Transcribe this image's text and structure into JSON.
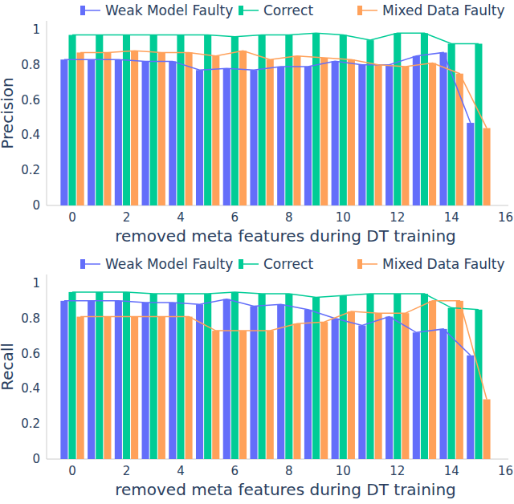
{
  "chart_data": [
    {
      "type": "bar",
      "x_label": "removed meta features during DT training",
      "y_label": "Precision",
      "x": [
        0,
        1,
        2,
        3,
        4,
        5,
        6,
        7,
        8,
        9,
        10,
        11,
        12,
        13,
        14,
        15
      ],
      "xlim": [
        -0.95,
        16.1
      ],
      "xticks": [
        0,
        2,
        4,
        6,
        8,
        10,
        12,
        14,
        16
      ],
      "ylim": [
        0,
        1.05
      ],
      "yticks": [
        0,
        0.2,
        0.4,
        0.6,
        0.8,
        1
      ],
      "grid": false,
      "legend": "top",
      "series": [
        {
          "name": "Weak Model Faulty",
          "color": "#636efa",
          "values": [
            0.83,
            0.83,
            0.83,
            0.82,
            0.82,
            0.77,
            0.78,
            0.77,
            0.79,
            0.79,
            0.82,
            0.8,
            0.8,
            0.85,
            0.87,
            0.47
          ]
        },
        {
          "name": "Correct",
          "color": "#00cc96",
          "values": [
            0.97,
            0.97,
            0.97,
            0.97,
            0.97,
            0.97,
            0.96,
            0.97,
            0.97,
            0.98,
            0.97,
            0.94,
            0.98,
            0.98,
            0.92,
            0.92
          ]
        },
        {
          "name": "Mixed Data Faulty",
          "color": "#ffa15a",
          "values": [
            0.87,
            0.87,
            0.88,
            0.87,
            0.87,
            0.85,
            0.88,
            0.83,
            0.85,
            0.84,
            0.83,
            0.8,
            0.79,
            0.81,
            0.75,
            0.44
          ]
        }
      ]
    },
    {
      "type": "bar",
      "x_label": "removed meta features during DT training",
      "y_label": "Recall",
      "x": [
        0,
        1,
        2,
        3,
        4,
        5,
        6,
        7,
        8,
        9,
        10,
        11,
        12,
        13,
        14,
        15
      ],
      "xlim": [
        -0.95,
        16.1
      ],
      "xticks": [
        0,
        2,
        4,
        6,
        8,
        10,
        12,
        14,
        16
      ],
      "ylim": [
        0,
        1.05
      ],
      "yticks": [
        0,
        0.2,
        0.4,
        0.6,
        0.8,
        1
      ],
      "grid": false,
      "legend": "top",
      "series": [
        {
          "name": "Weak Model Faulty",
          "color": "#636efa",
          "values": [
            0.9,
            0.9,
            0.9,
            0.89,
            0.89,
            0.88,
            0.91,
            0.87,
            0.88,
            0.85,
            0.8,
            0.76,
            0.81,
            0.72,
            0.74,
            0.59
          ]
        },
        {
          "name": "Correct",
          "color": "#00cc96",
          "values": [
            0.95,
            0.95,
            0.95,
            0.94,
            0.94,
            0.94,
            0.95,
            0.94,
            0.94,
            0.92,
            0.93,
            0.94,
            0.94,
            0.94,
            0.86,
            0.85
          ]
        },
        {
          "name": "Mixed Data Faulty",
          "color": "#ffa15a",
          "values": [
            0.81,
            0.81,
            0.81,
            0.81,
            0.81,
            0.73,
            0.73,
            0.73,
            0.77,
            0.78,
            0.84,
            0.83,
            0.83,
            0.9,
            0.9,
            0.34
          ]
        }
      ]
    }
  ]
}
